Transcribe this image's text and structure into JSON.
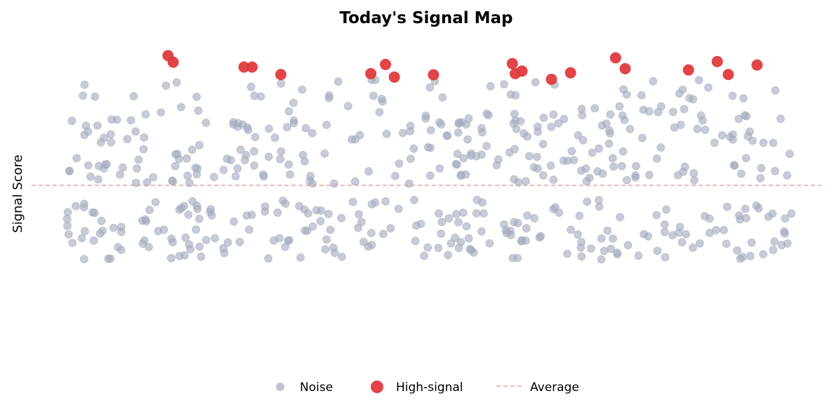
{
  "chart_data": {
    "type": "scatter",
    "title": "Today's Signal Map",
    "xlabel": "",
    "ylabel": "Signal Score",
    "xlim": [
      0,
      10
    ],
    "ylim": [
      -5,
      5
    ],
    "x_ticks_visible": false,
    "y_ticks_visible": false,
    "grid": false,
    "legend": {
      "placement": "bottom-center",
      "entries": [
        "Noise",
        "High-signal",
        "Average"
      ]
    },
    "average_line": {
      "label": "Average",
      "y": 0,
      "style": "dashed",
      "color": "#e88a8a"
    },
    "series": [
      {
        "name": "Noise",
        "color": "#a3abbd",
        "count": 520,
        "seed": 17,
        "x_range": [
          0.05,
          9.95
        ],
        "y_range": [
          -2.6,
          3.7
        ]
      },
      {
        "name": "High-signal",
        "color": "#e03a3e",
        "points": [
          [
            1.47,
            4.53
          ],
          [
            1.54,
            4.3
          ],
          [
            2.5,
            4.13
          ],
          [
            2.61,
            4.13
          ],
          [
            3.0,
            3.87
          ],
          [
            4.22,
            3.9
          ],
          [
            4.42,
            4.22
          ],
          [
            4.54,
            3.78
          ],
          [
            5.07,
            3.86
          ],
          [
            6.14,
            4.25
          ],
          [
            6.18,
            3.9
          ],
          [
            6.27,
            3.99
          ],
          [
            6.67,
            3.7
          ],
          [
            6.93,
            3.93
          ],
          [
            7.54,
            4.45
          ],
          [
            7.67,
            4.07
          ],
          [
            8.53,
            4.03
          ],
          [
            8.92,
            4.32
          ],
          [
            9.07,
            3.87
          ],
          [
            9.46,
            4.2
          ]
        ]
      }
    ]
  }
}
